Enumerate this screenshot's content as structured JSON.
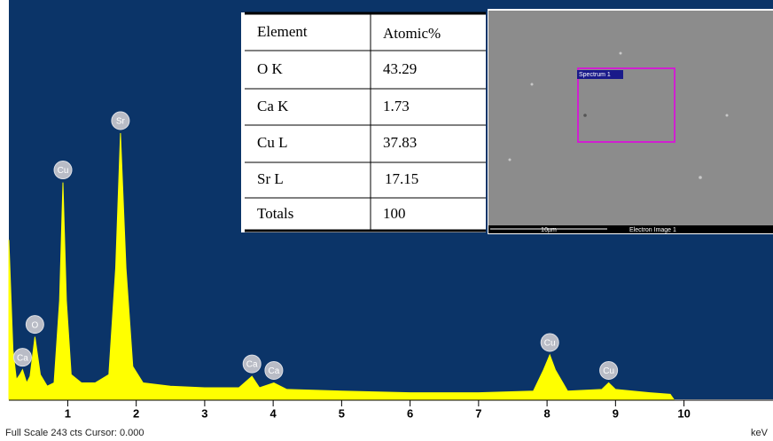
{
  "chart_data": {
    "type": "area",
    "x": [
      0.14,
      0.2,
      0.25,
      0.3,
      0.34,
      0.4,
      0.45,
      0.52,
      0.6,
      0.7,
      0.8,
      0.88,
      0.93,
      0.98,
      1.05,
      1.2,
      1.4,
      1.6,
      1.7,
      1.77,
      1.85,
      1.95,
      2.1,
      2.5,
      3.0,
      3.5,
      3.69,
      3.8,
      4.01,
      4.2,
      5,
      6,
      7,
      7.8,
      7.95,
      8.04,
      8.12,
      8.3,
      8.8,
      8.9,
      9.0,
      9.5,
      9.8,
      9.85
    ],
    "values": [
      97,
      30,
      12,
      15,
      18,
      10,
      14,
      38,
      15,
      8,
      10,
      60,
      132,
      60,
      15,
      10,
      10,
      15,
      80,
      162,
      80,
      20,
      10,
      8,
      7,
      7,
      14,
      7,
      10,
      6,
      5,
      4,
      4,
      5,
      18,
      27,
      18,
      5,
      6,
      10,
      6,
      4,
      3,
      0
    ],
    "color": "#ffff00",
    "xlim": [
      0.14,
      11.3
    ],
    "ylim": [
      0,
      243
    ],
    "xticks": [
      1,
      2,
      3,
      4,
      5,
      6,
      7,
      8,
      9,
      10
    ],
    "x_label": "keV",
    "footer": "Full Scale 243 cts Cursor: 0.000",
    "peak_labels": [
      {
        "text": "Ca",
        "x": 0.34
      },
      {
        "text": "O",
        "x": 0.52
      },
      {
        "text": "Cu",
        "x": 0.93
      },
      {
        "text": "Sr",
        "x": 1.77
      },
      {
        "text": "Ca",
        "x": 3.69
      },
      {
        "text": "Ca",
        "x": 4.01
      },
      {
        "text": "Cu",
        "x": 8.04
      },
      {
        "text": "Cu",
        "x": 8.9
      }
    ]
  },
  "table": {
    "header": [
      "Element",
      "Atomic%"
    ],
    "rows": [
      [
        "O K",
        "43.29"
      ],
      [
        "Ca K",
        "1.73"
      ],
      [
        "Cu L",
        "37.83"
      ],
      [
        "Sr L",
        "17.15"
      ],
      [
        "Totals",
        "100"
      ]
    ]
  },
  "sem_image": {
    "spectrum_label": "Spectrum 1",
    "scale_label": "10µm",
    "caption": "Electron Image 1"
  }
}
